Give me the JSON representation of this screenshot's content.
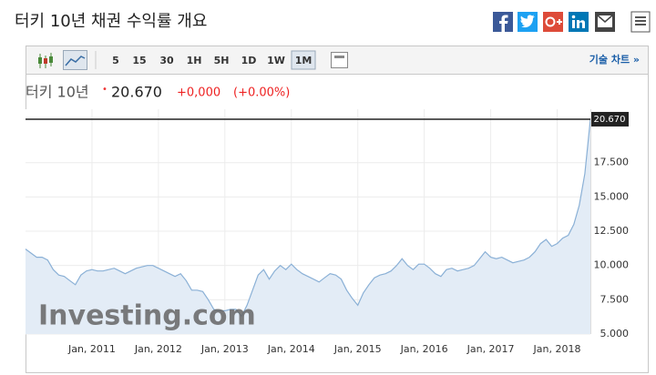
{
  "header": {
    "title": "터키 10년 채권 수익률 개요"
  },
  "toolbar": {
    "periods": [
      "5",
      "15",
      "30",
      "1H",
      "5H",
      "1D",
      "1W",
      "1M"
    ],
    "tech_chart": "기술 차트 »"
  },
  "quote": {
    "name": "터키 10년",
    "price": "20.670",
    "change": "+0,000",
    "change_pct": "(+0.00%)"
  },
  "watermark": "Investing.com",
  "chart_data": {
    "type": "area",
    "color": "#8ab0d6",
    "fill": "#e3ecf6",
    "x": [
      "2010-01",
      "2010-02",
      "2010-03",
      "2010-04",
      "2010-05",
      "2010-06",
      "2010-07",
      "2010-08",
      "2010-09",
      "2010-10",
      "2010-11",
      "2010-12",
      "2011-01",
      "2011-02",
      "2011-03",
      "2011-04",
      "2011-05",
      "2011-06",
      "2011-07",
      "2011-08",
      "2011-09",
      "2011-10",
      "2011-11",
      "2011-12",
      "2012-01",
      "2012-02",
      "2012-03",
      "2012-04",
      "2012-05",
      "2012-06",
      "2012-07",
      "2012-08",
      "2012-09",
      "2012-10",
      "2012-11",
      "2012-12",
      "2013-01",
      "2013-02",
      "2013-03",
      "2013-04",
      "2013-05",
      "2013-06",
      "2013-07",
      "2013-08",
      "2013-09",
      "2013-10",
      "2013-11",
      "2013-12",
      "2014-01",
      "2014-02",
      "2014-03",
      "2014-04",
      "2014-05",
      "2014-06",
      "2014-07",
      "2014-08",
      "2014-09",
      "2014-10",
      "2014-11",
      "2014-12",
      "2015-01",
      "2015-02",
      "2015-03",
      "2015-04",
      "2015-05",
      "2015-06",
      "2015-07",
      "2015-08",
      "2015-09",
      "2015-10",
      "2015-11",
      "2015-12",
      "2016-01",
      "2016-02",
      "2016-03",
      "2016-04",
      "2016-05",
      "2016-06",
      "2016-07",
      "2016-08",
      "2016-09",
      "2016-10",
      "2016-11",
      "2016-12",
      "2017-01",
      "2017-02",
      "2017-03",
      "2017-04",
      "2017-05",
      "2017-06",
      "2017-07",
      "2017-08",
      "2017-09",
      "2017-10",
      "2017-11",
      "2017-12",
      "2018-01",
      "2018-02",
      "2018-03",
      "2018-04",
      "2018-05",
      "2018-06",
      "2018-07"
    ],
    "values": [
      11.2,
      10.9,
      10.6,
      10.6,
      10.4,
      9.7,
      9.3,
      9.2,
      8.9,
      8.6,
      9.3,
      9.6,
      9.7,
      9.6,
      9.6,
      9.7,
      9.8,
      9.6,
      9.4,
      9.6,
      9.8,
      9.9,
      10.0,
      10.0,
      9.8,
      9.6,
      9.4,
      9.2,
      9.4,
      8.9,
      8.2,
      8.2,
      8.1,
      7.5,
      6.8,
      6.7,
      6.7,
      6.8,
      6.8,
      6.3,
      7.1,
      8.2,
      9.3,
      9.7,
      9.0,
      9.6,
      10.0,
      9.7,
      10.1,
      9.7,
      9.4,
      9.2,
      9.0,
      8.8,
      9.1,
      9.4,
      9.3,
      9.0,
      8.2,
      7.6,
      7.1,
      8.0,
      8.6,
      9.1,
      9.3,
      9.4,
      9.6,
      10.0,
      10.5,
      10.0,
      9.7,
      10.1,
      10.1,
      9.8,
      9.4,
      9.2,
      9.7,
      9.8,
      9.6,
      9.7,
      9.8,
      10.0,
      10.5,
      11.0,
      10.6,
      10.5,
      10.6,
      10.4,
      10.2,
      10.3,
      10.4,
      10.6,
      11.0,
      11.6,
      11.9,
      11.4,
      11.6,
      12.0,
      12.2,
      13.0,
      14.4,
      16.7,
      20.67
    ],
    "xticks": [
      {
        "value": "2011-01",
        "label": "Jan, 2011"
      },
      {
        "value": "2012-01",
        "label": "Jan, 2012"
      },
      {
        "value": "2013-01",
        "label": "Jan, 2013"
      },
      {
        "value": "2014-01",
        "label": "Jan, 2014"
      },
      {
        "value": "2015-01",
        "label": "Jan, 2015"
      },
      {
        "value": "2016-01",
        "label": "Jan, 2016"
      },
      {
        "value": "2017-01",
        "label": "Jan, 2017"
      },
      {
        "value": "2018-01",
        "label": "Jan, 2018"
      }
    ],
    "ylim": [
      5,
      20.8
    ],
    "yticks": [
      {
        "value": 5,
        "label": "5.000"
      },
      {
        "value": 7.5,
        "label": "7.500"
      },
      {
        "value": 10,
        "label": "10.000"
      },
      {
        "value": 12.5,
        "label": "12.500"
      },
      {
        "value": 15,
        "label": "15.000"
      },
      {
        "value": 17.5,
        "label": "17.500"
      }
    ],
    "last_price": {
      "value": 20.67,
      "label": "20.670"
    },
    "grid": true
  }
}
